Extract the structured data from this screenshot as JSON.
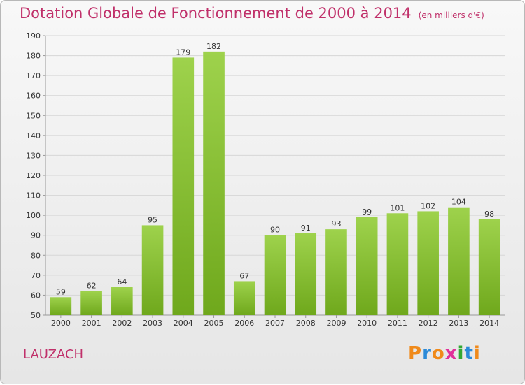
{
  "title": "Dotation Globale de Fonctionnement de 2000 à 2014",
  "unit": "(en milliers d'€)",
  "commune": "LAUZACH",
  "logo": {
    "text": "Proxiti",
    "letters": [
      "P",
      "r",
      "o",
      "x",
      "i",
      "t",
      "i"
    ],
    "colors": [
      "#f08a1a",
      "#2b8ad8",
      "#f08a1a",
      "#e0309a",
      "#33a833",
      "#2b8ad8",
      "#f08a1a"
    ]
  },
  "colors": {
    "title": "#c0306a",
    "bar_light": "#9ed24c",
    "bar_dark": "#6fa81c"
  },
  "chart_data": {
    "type": "bar",
    "title": "Dotation Globale de Fonctionnement de 2000 à 2014",
    "ylabel": "(en milliers d'€)",
    "xlabel": "",
    "categories": [
      "2000",
      "2001",
      "2002",
      "2003",
      "2004",
      "2005",
      "2006",
      "2007",
      "2008",
      "2009",
      "2010",
      "2011",
      "2012",
      "2013",
      "2014"
    ],
    "values": [
      59,
      62,
      64,
      95,
      179,
      182,
      67,
      90,
      91,
      93,
      99,
      101,
      102,
      104,
      98
    ],
    "ylim": [
      50,
      190
    ],
    "yticks": [
      50,
      60,
      70,
      80,
      90,
      100,
      110,
      120,
      130,
      140,
      150,
      160,
      170,
      180,
      190
    ],
    "grid": true,
    "legend": "none"
  }
}
